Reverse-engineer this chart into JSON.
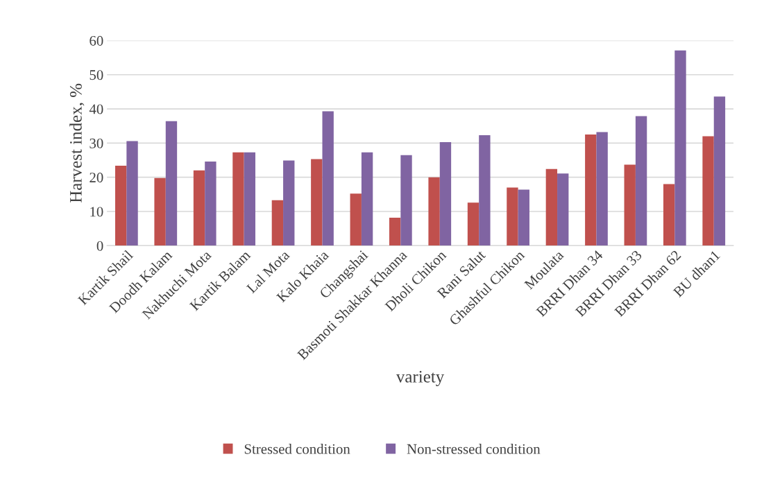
{
  "chart_data": {
    "type": "bar",
    "xlabel": "variety",
    "ylabel": "Harvest index, %",
    "categories": [
      "Kartik Shail",
      "Doodh Kalam",
      "Nakhuchi Mota",
      "Kartik Balam",
      "Lal Mota",
      "Kalo Khaia",
      "Changshai",
      "Basmoti Shakkar Khanna",
      "Dholi Chikon",
      "Rani Salut",
      "Ghashful Chikon",
      "Moulata",
      "BRRI Dhan 34",
      "BRRI Dhan 33",
      "BRRI Dhan 62",
      "BU dhan1"
    ],
    "series": [
      {
        "name": "Stressed condition",
        "color": "#c0504d",
        "values": [
          23.4,
          19.8,
          22.0,
          27.3,
          13.3,
          25.3,
          15.2,
          8.2,
          20.0,
          12.6,
          17.0,
          22.4,
          32.5,
          23.7,
          18.0,
          32.0
        ]
      },
      {
        "name": "Non-stressed condition",
        "color": "#8064a2",
        "values": [
          30.6,
          36.4,
          24.6,
          27.3,
          24.9,
          39.3,
          27.3,
          26.5,
          30.3,
          32.3,
          16.4,
          21.1,
          33.2,
          37.9,
          57.1,
          43.6
        ]
      }
    ],
    "ylim": [
      0,
      60
    ],
    "yticks": [
      0,
      10,
      20,
      30,
      40,
      50,
      60
    ],
    "grid": "y",
    "legend": "bottom"
  }
}
